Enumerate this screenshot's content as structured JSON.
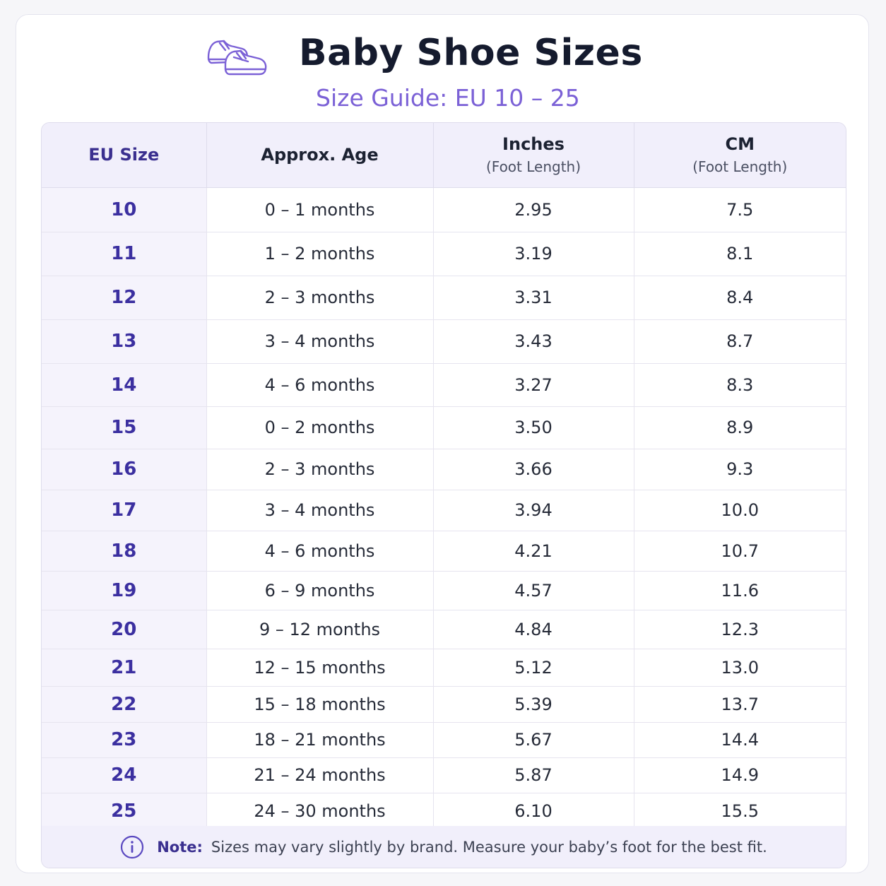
{
  "header": {
    "title": "Baby Shoe Sizes",
    "subtitle": "Size Guide: EU 10 – 25",
    "icon": "baby-shoes-icon"
  },
  "table": {
    "columns": [
      {
        "label": "EU Size",
        "sub": ""
      },
      {
        "label": "Approx. Age",
        "sub": ""
      },
      {
        "label": "Inches",
        "sub": "(Foot Length)"
      },
      {
        "label": "CM",
        "sub": "(Foot Length)"
      }
    ],
    "rows": [
      {
        "eu": "10",
        "age": "0 – 1 months",
        "inches": "2.95",
        "cm": "7.5"
      },
      {
        "eu": "11",
        "age": "1 – 2 months",
        "inches": "3.19",
        "cm": "8.1"
      },
      {
        "eu": "12",
        "age": "2 – 3 months",
        "inches": "3.31",
        "cm": "8.4"
      },
      {
        "eu": "13",
        "age": "3 – 4 months",
        "inches": "3.43",
        "cm": "8.7"
      },
      {
        "eu": "14",
        "age": "4 – 6 months",
        "inches": "3.27",
        "cm": "8.3"
      },
      {
        "eu": "15",
        "age": "0 – 2 months",
        "inches": "3.50",
        "cm": "8.9"
      },
      {
        "eu": "16",
        "age": "2 – 3 months",
        "inches": "3.66",
        "cm": "9.3"
      },
      {
        "eu": "17",
        "age": "3 – 4 months",
        "inches": "3.94",
        "cm": "10.0"
      },
      {
        "eu": "18",
        "age": "4 – 6 months",
        "inches": "4.21",
        "cm": "10.7"
      },
      {
        "eu": "19",
        "age": "6 – 9 months",
        "inches": "4.57",
        "cm": "11.6"
      },
      {
        "eu": "20",
        "age": "9 – 12 months",
        "inches": "4.84",
        "cm": "12.3"
      },
      {
        "eu": "21",
        "age": "12 – 15 months",
        "inches": "5.12",
        "cm": "13.0"
      },
      {
        "eu": "22",
        "age": "15 – 18 months",
        "inches": "5.39",
        "cm": "13.7"
      },
      {
        "eu": "23",
        "age": "18 – 21 months",
        "inches": "5.67",
        "cm": "14.4"
      },
      {
        "eu": "24",
        "age": "21 – 24 months",
        "inches": "5.87",
        "cm": "14.9"
      },
      {
        "eu": "25",
        "age": "24 – 30 months",
        "inches": "6.10",
        "cm": "15.5"
      }
    ]
  },
  "note": {
    "icon": "info-icon",
    "label": "Note:",
    "text": "Sizes may vary slightly by brand. Measure your baby’s foot for the best fit."
  },
  "colors": {
    "accent": "#7b61d6",
    "size_text": "#3b2fa0",
    "header_bg": "#f1effb"
  }
}
